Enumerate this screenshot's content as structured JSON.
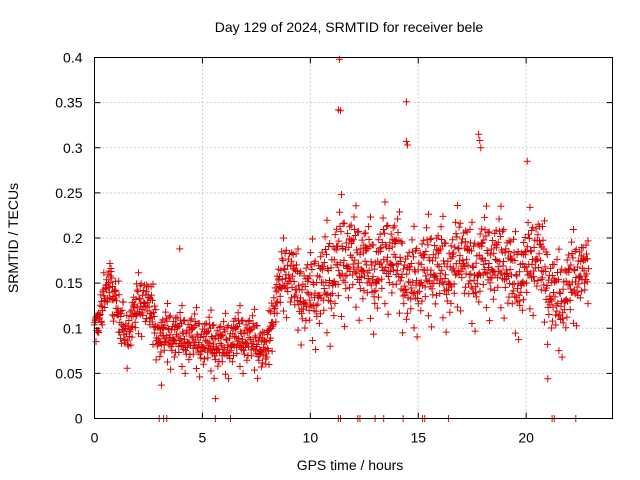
{
  "chart_data": {
    "type": "scatter",
    "title": "Day 129 of 2024, SRMTID for receiver bele",
    "xlabel": "GPS time / hours",
    "ylabel": "SRMTID / TECUs",
    "xlim": [
      0,
      24
    ],
    "ylim": [
      0,
      0.4
    ],
    "xticks": [
      0,
      5,
      10,
      15,
      20
    ],
    "xtick_labels": [
      "0",
      "5",
      "10",
      "15",
      "20"
    ],
    "yticks": [
      0,
      0.05,
      0.1,
      0.15,
      0.2,
      0.25,
      0.3,
      0.35,
      0.4
    ],
    "ytick_labels": [
      "0",
      "0.05",
      "0.1",
      "0.15",
      "0.2",
      "0.25",
      "0.3",
      "0.35",
      "0.4"
    ],
    "grid": true,
    "marker": "plus",
    "color": "#dd0000",
    "zero_points_x": [
      3.0,
      3.2,
      3.35,
      5.6,
      6.3,
      11.3,
      11.4,
      12.2,
      12.3,
      13.0,
      13.4,
      14.3,
      15.2,
      15.3,
      16.4,
      21.2,
      21.3,
      22.3
    ],
    "outliers": [
      {
        "x": 11.35,
        "y": 0.398
      },
      {
        "x": 11.3,
        "y": 0.342
      },
      {
        "x": 11.4,
        "y": 0.341
      },
      {
        "x": 14.45,
        "y": 0.351
      },
      {
        "x": 14.45,
        "y": 0.307
      },
      {
        "x": 14.5,
        "y": 0.303
      },
      {
        "x": 17.8,
        "y": 0.315
      },
      {
        "x": 17.85,
        "y": 0.308
      },
      {
        "x": 17.9,
        "y": 0.3
      },
      {
        "x": 20.05,
        "y": 0.285
      },
      {
        "x": 3.95,
        "y": 0.188
      },
      {
        "x": 5.6,
        "y": 0.022
      },
      {
        "x": 21.0,
        "y": 0.044
      },
      {
        "x": 3.1,
        "y": 0.037
      }
    ],
    "series": [
      {
        "name": "SRMTID",
        "x": [
          0.0,
          0.5,
          0.8,
          1.0,
          1.5,
          2.0,
          2.3,
          2.7,
          3.0,
          3.5,
          4.0,
          4.5,
          5.0,
          5.5,
          6.0,
          6.5,
          7.0,
          7.5,
          8.0,
          8.3,
          8.7,
          9.0,
          9.5,
          10.0,
          10.5,
          11.0,
          11.5,
          12.0,
          12.5,
          13.0,
          13.5,
          14.0,
          14.5,
          15.0,
          15.5,
          16.0,
          16.5,
          17.0,
          17.5,
          18.0,
          18.5,
          19.0,
          19.5,
          20.0,
          20.5,
          21.0,
          21.5,
          22.0,
          22.5,
          22.9
        ],
        "y": [
          0.095,
          0.14,
          0.15,
          0.125,
          0.09,
          0.12,
          0.13,
          0.11,
          0.085,
          0.09,
          0.085,
          0.085,
          0.08,
          0.08,
          0.075,
          0.085,
          0.085,
          0.08,
          0.07,
          0.12,
          0.15,
          0.16,
          0.13,
          0.13,
          0.14,
          0.15,
          0.17,
          0.17,
          0.165,
          0.15,
          0.175,
          0.17,
          0.14,
          0.15,
          0.16,
          0.16,
          0.15,
          0.18,
          0.15,
          0.17,
          0.165,
          0.17,
          0.14,
          0.16,
          0.18,
          0.14,
          0.12,
          0.14,
          0.16,
          0.155
        ],
        "spread": [
          0.02,
          0.03,
          0.03,
          0.03,
          0.03,
          0.03,
          0.03,
          0.03,
          0.025,
          0.03,
          0.03,
          0.03,
          0.03,
          0.03,
          0.03,
          0.03,
          0.03,
          0.03,
          0.025,
          0.03,
          0.035,
          0.04,
          0.04,
          0.05,
          0.05,
          0.06,
          0.06,
          0.05,
          0.05,
          0.05,
          0.05,
          0.05,
          0.05,
          0.05,
          0.05,
          0.05,
          0.05,
          0.05,
          0.05,
          0.05,
          0.05,
          0.05,
          0.05,
          0.05,
          0.05,
          0.05,
          0.05,
          0.05,
          0.04,
          0.03
        ]
      }
    ]
  }
}
